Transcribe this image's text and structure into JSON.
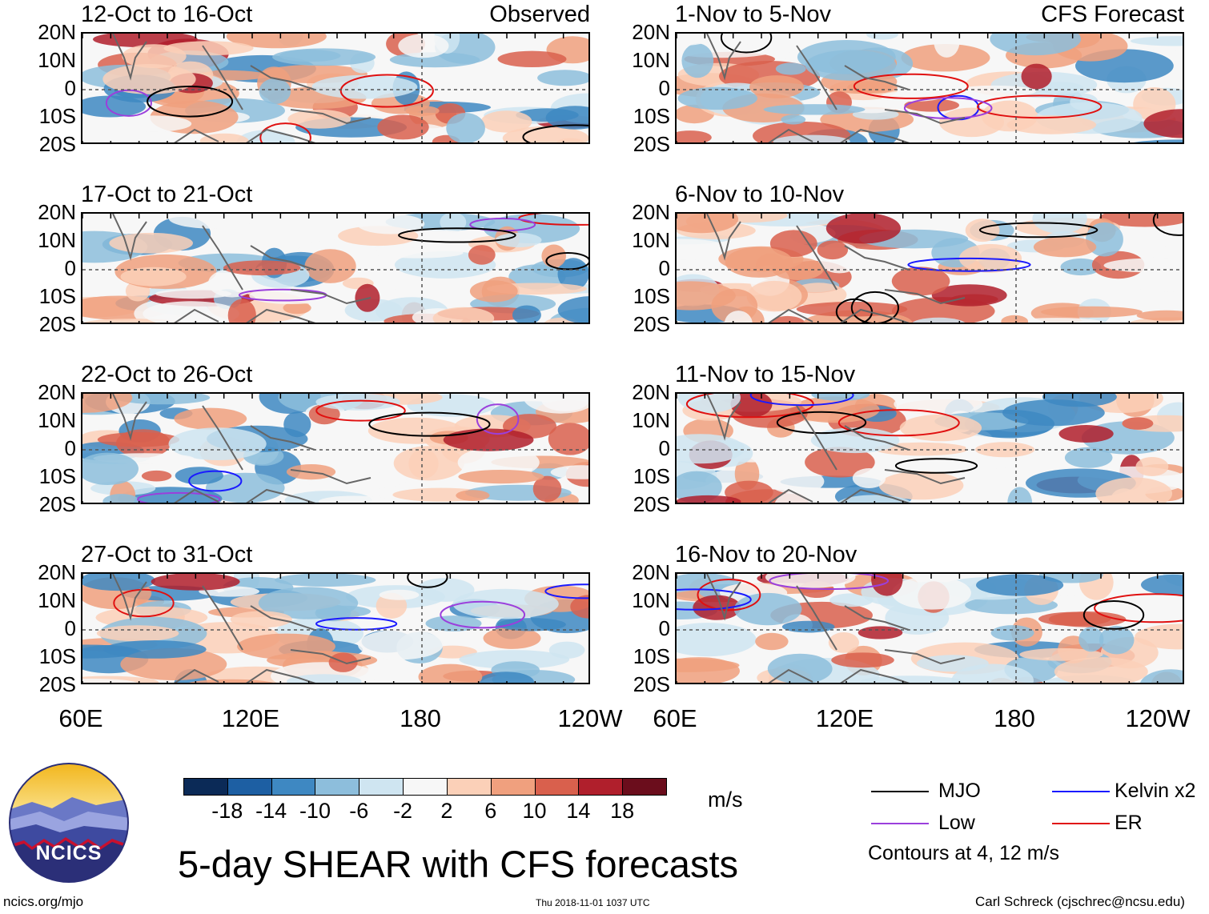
{
  "chart_data": {
    "type": "heatmap",
    "title": "5-day SHEAR with CFS forecasts",
    "units": "m/s",
    "observed_label": "Observed",
    "forecast_label": "CFS Forecast",
    "x_ticks": [
      "60E",
      "120E",
      "180",
      "120W"
    ],
    "y_ticks": [
      "20N",
      "10N",
      "0",
      "10S",
      "20S"
    ],
    "x_range_deg": [
      60,
      240
    ],
    "y_range_deg": [
      -20,
      20
    ],
    "observed_panels": [
      {
        "title": "12-Oct to 16-Oct"
      },
      {
        "title": "17-Oct to 21-Oct"
      },
      {
        "title": "22-Oct to 26-Oct"
      },
      {
        "title": "27-Oct to 31-Oct"
      }
    ],
    "forecast_panels": [
      {
        "title": "1-Nov to 5-Nov"
      },
      {
        "title": "6-Nov to 10-Nov"
      },
      {
        "title": "11-Nov to 15-Nov"
      },
      {
        "title": "16-Nov to 20-Nov"
      }
    ],
    "colorbar": {
      "ticks": [
        "-18",
        "-14",
        "-10",
        "-6",
        "-2",
        "2",
        "6",
        "10",
        "14",
        "18"
      ],
      "colors": [
        "#0b2a57",
        "#1d5fa3",
        "#3e88c2",
        "#8dbedc",
        "#cfe5f1",
        "#f7f7f7",
        "#fbd0b8",
        "#f0a07e",
        "#d9604d",
        "#b01f2c",
        "#6b0d1c"
      ]
    },
    "legend": {
      "items": [
        {
          "label": "MJO",
          "color": "#000000"
        },
        {
          "label": "Kelvin x2",
          "color": "#1a1aff"
        },
        {
          "label": "Low",
          "color": "#9b3fdc"
        },
        {
          "label": "ER",
          "color": "#e01010"
        }
      ],
      "note": "Contours at 4, 12 m/s"
    }
  },
  "footer": {
    "logo_text": "NCICS",
    "url": "ncics.org/mjo",
    "timestamp": "Thu 2018-11-01 1037 UTC",
    "credit": "Carl Schreck (cjschrec@ncsu.edu)"
  }
}
